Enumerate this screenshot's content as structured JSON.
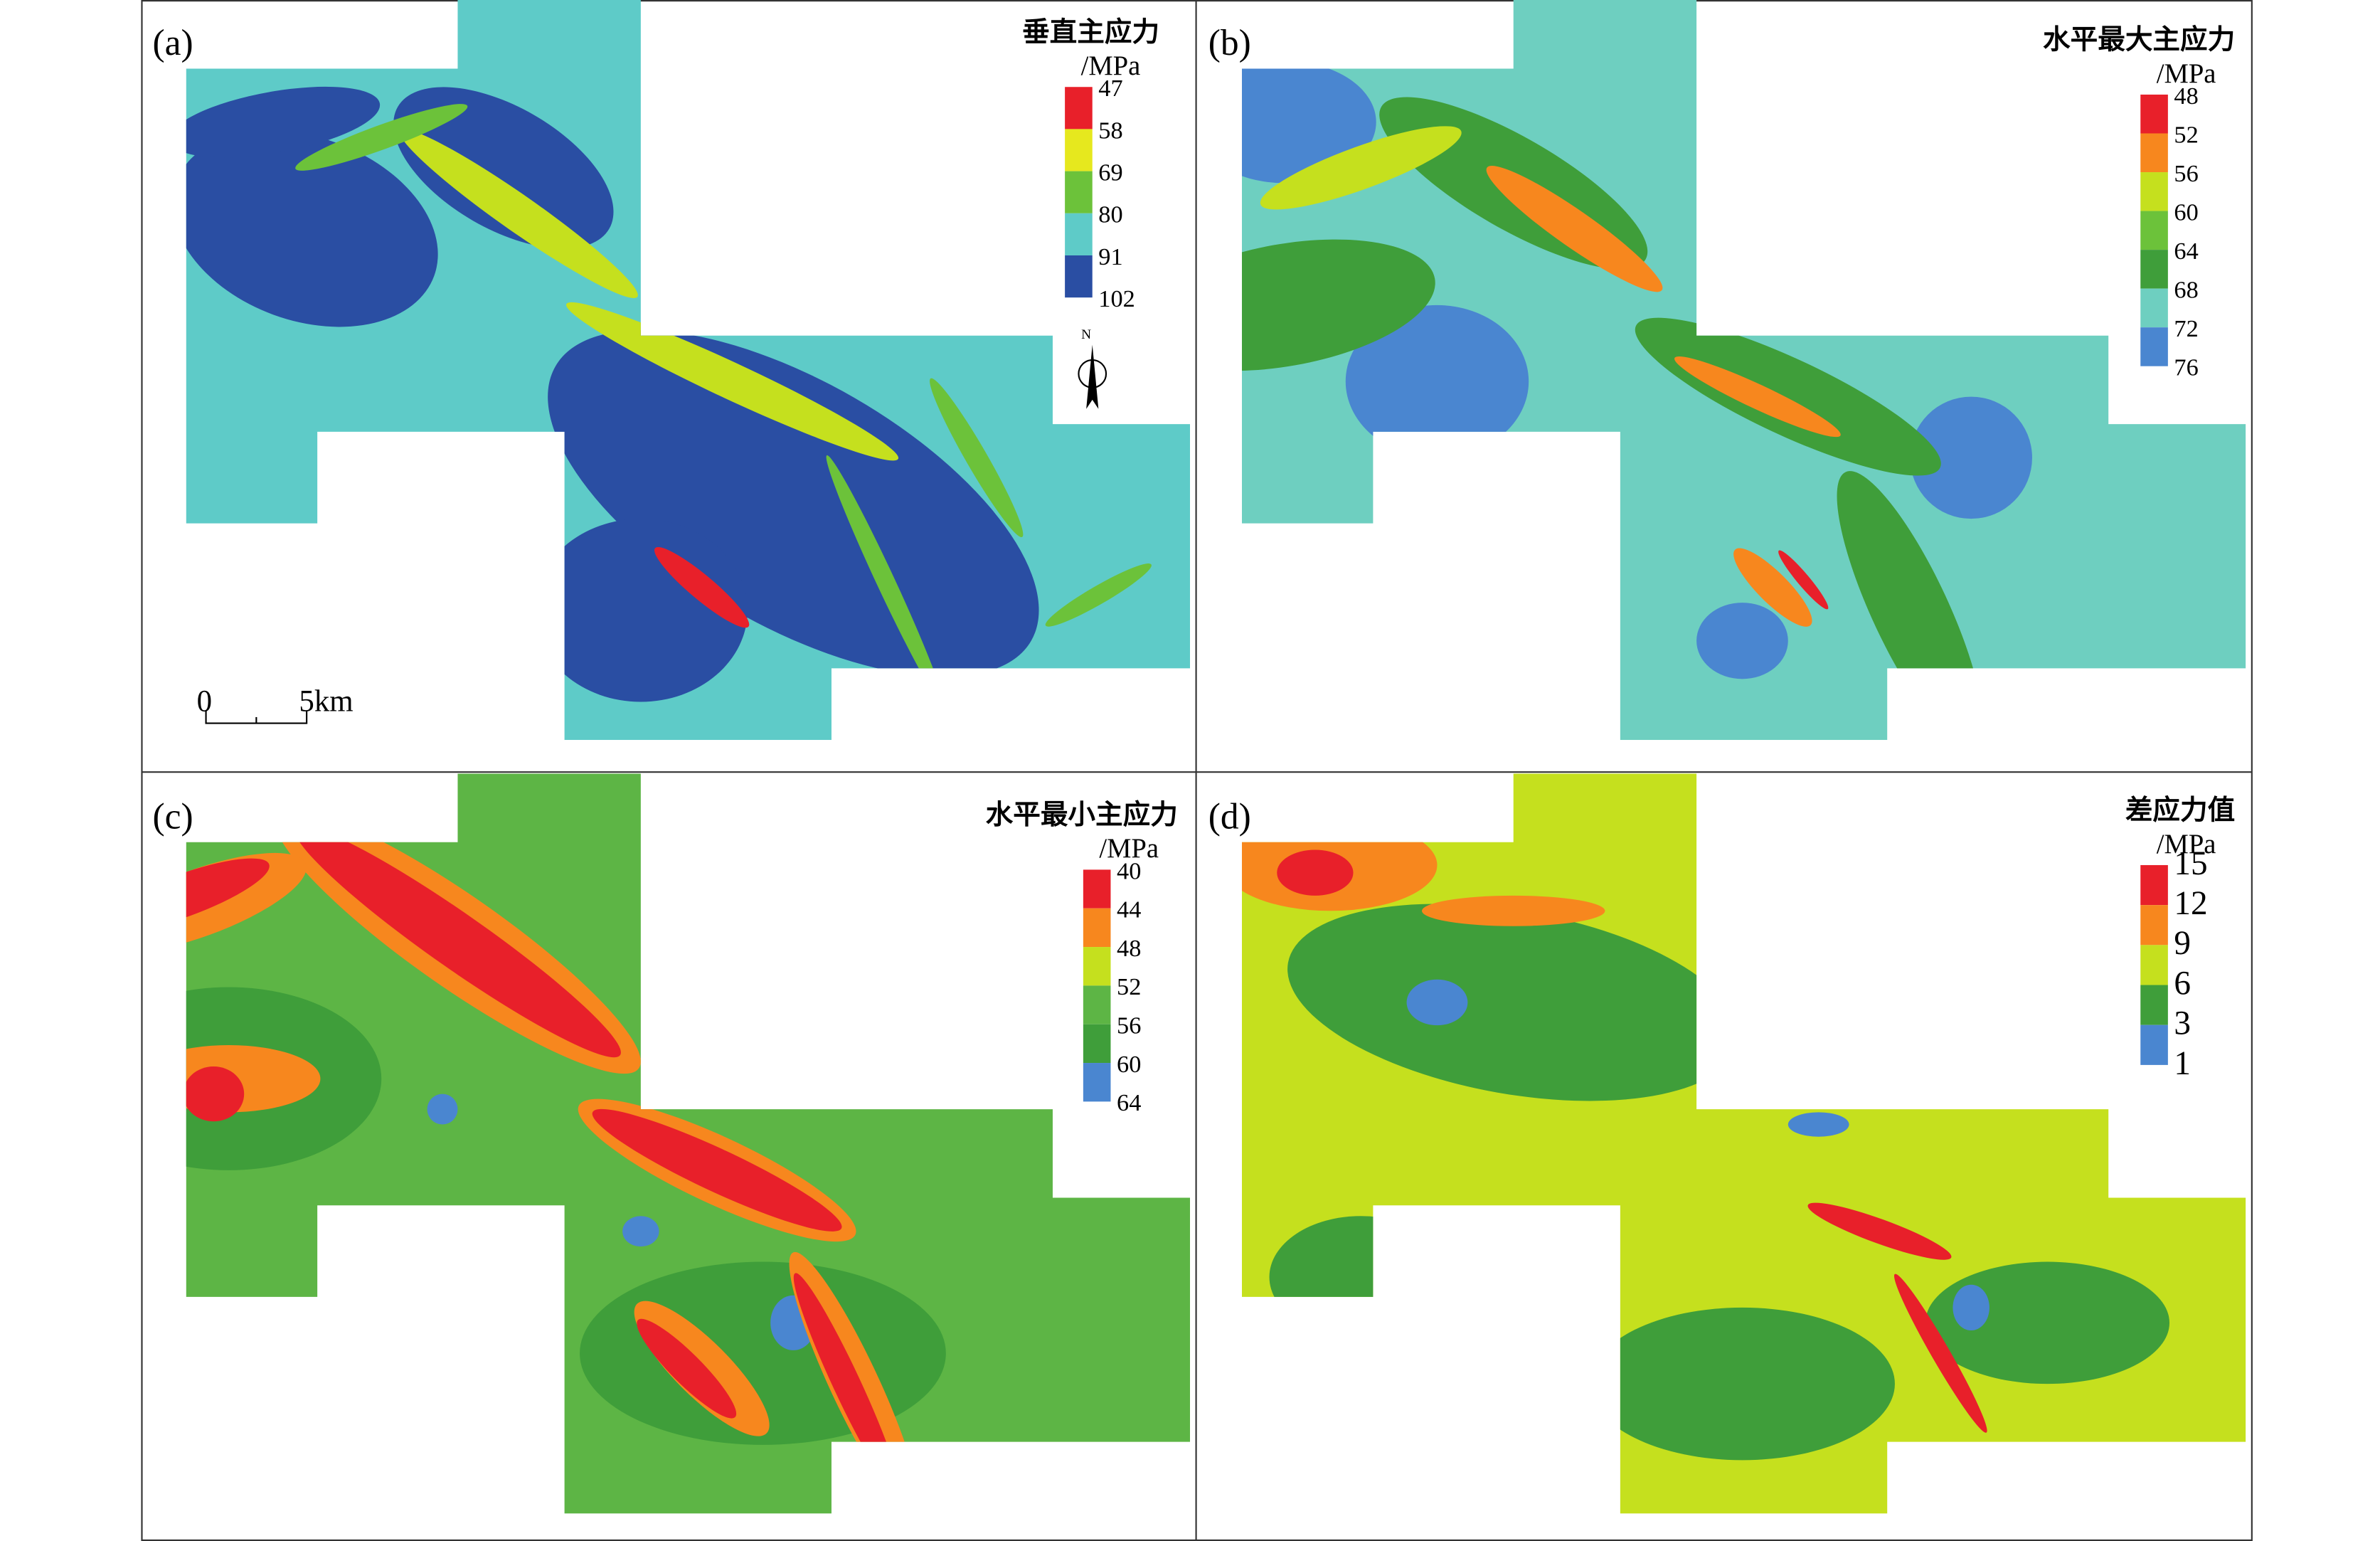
{
  "panels": [
    {
      "label": "(a)",
      "legend": {
        "title": "垂直主应力",
        "unit": "/MPa",
        "ticks": [
          "47",
          "58",
          "69",
          "80",
          "91",
          "102"
        ],
        "colors": [
          "#e8202a",
          "#e6e81e",
          "#6cc23a",
          "#5ecbc8",
          "#2a4ea3"
        ]
      }
    },
    {
      "label": "(b)",
      "legend": {
        "title": "水平最大主应力",
        "unit": "/MPa",
        "ticks": [
          "48",
          "52",
          "56",
          "60",
          "64",
          "68",
          "72",
          "76"
        ],
        "colors": [
          "#e8202a",
          "#f7871e",
          "#c5e01e",
          "#6cc23a",
          "#3f9e3a",
          "#6ecfc0",
          "#4a86d0"
        ]
      }
    },
    {
      "label": "(c)",
      "legend": {
        "title": "水平最小主应力",
        "unit": "/MPa",
        "ticks": [
          "40",
          "44",
          "48",
          "52",
          "56",
          "60",
          "64"
        ],
        "colors": [
          "#e8202a",
          "#f7871e",
          "#c5e01e",
          "#5db545",
          "#3f9e3a",
          "#4a86d0"
        ]
      }
    },
    {
      "label": "(d)",
      "legend": {
        "title": "差应力值",
        "unit": "/MPa",
        "ticks": [
          "15",
          "12",
          "9",
          "6",
          "3",
          "1"
        ],
        "colors": [
          "#e8202a",
          "#f7871e",
          "#c5e01e",
          "#3f9e3a",
          "#4a86d0"
        ]
      }
    }
  ],
  "scale_bar": {
    "start": "0",
    "end": "5km"
  },
  "north": "N"
}
